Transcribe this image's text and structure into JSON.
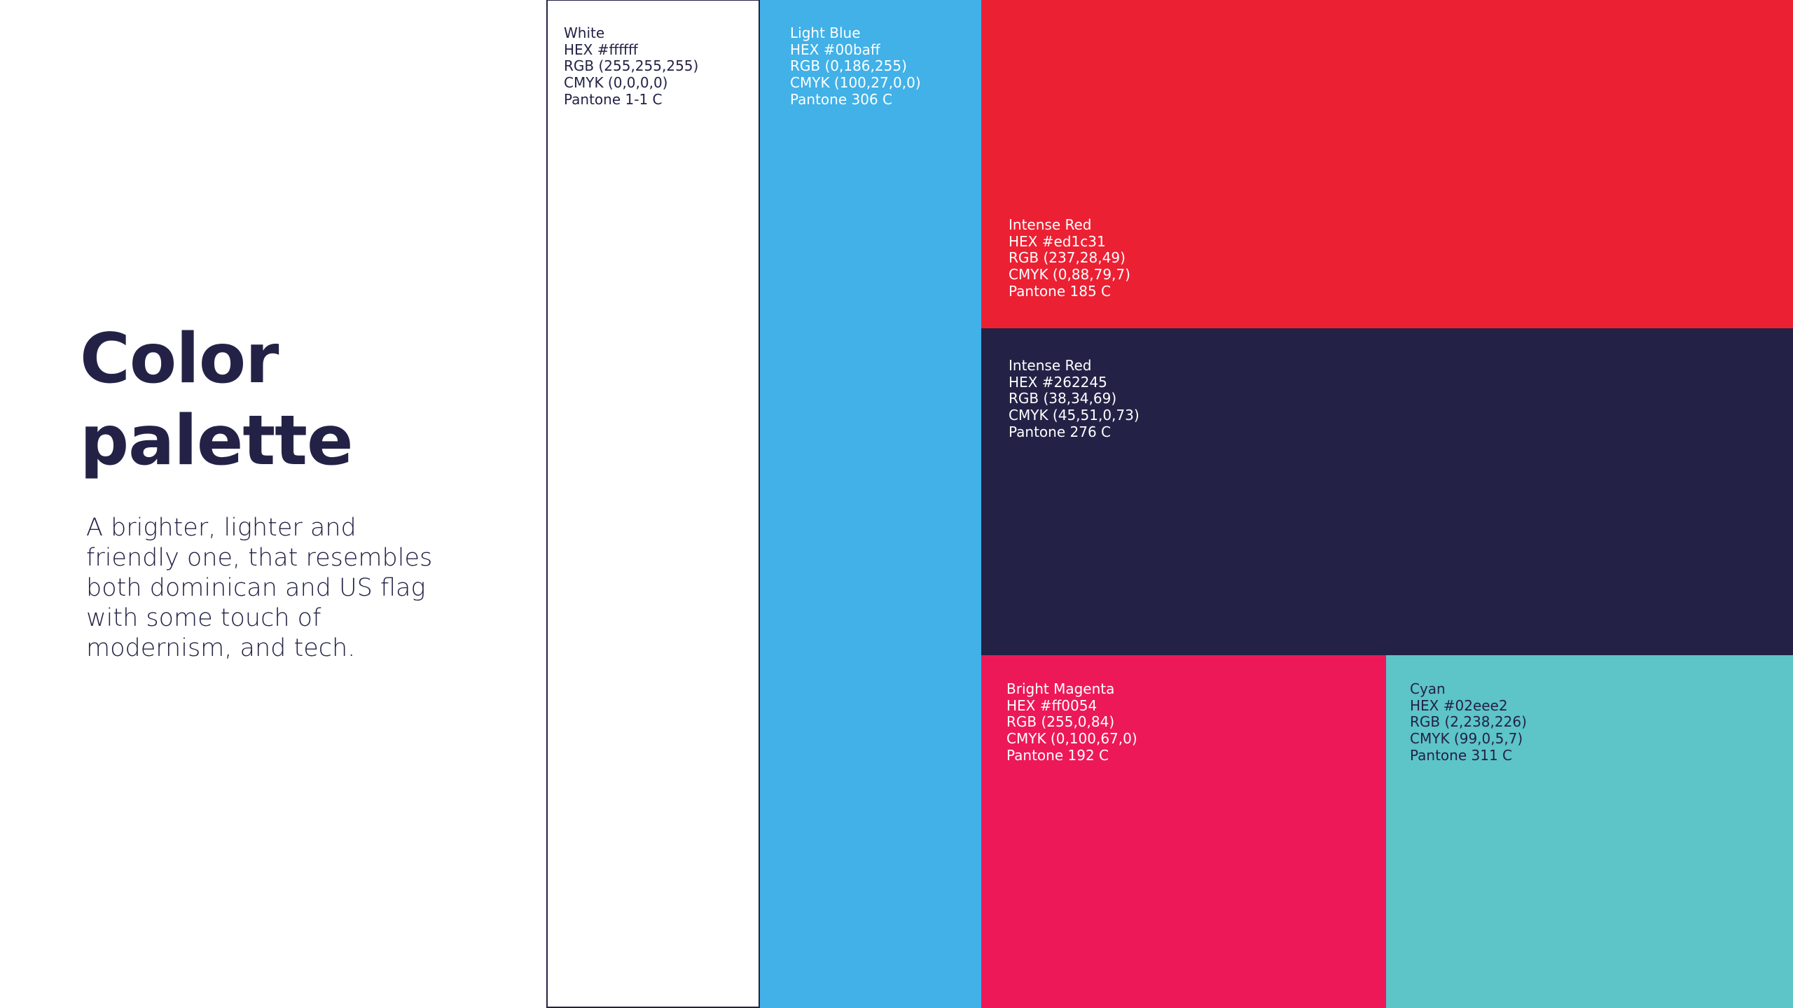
{
  "title": [
    "Color",
    "palette"
  ],
  "description": [
    "A brighter, lighter and",
    "friendly one, that resembles",
    "both dominican and US flag",
    "with some touch of",
    "modernism, and tech."
  ],
  "swatches": [
    {
      "lines": [
        "White",
        "HEX #ffffff",
        "RGB (255,255,255)",
        "CMYK (0,0,0,0)",
        "Pantone 1-1 C"
      ]
    },
    {
      "lines": [
        "Light Blue",
        "HEX #00baff",
        "RGB (0,186,255)",
        "CMYK (100,27,0,0)",
        "Pantone 306 C"
      ]
    },
    {
      "lines": [
        "Intense Red",
        "HEX #ed1c31",
        "RGB (237,28,49)",
        "CMYK (0,88,79,7)",
        "Pantone 185 C"
      ]
    },
    {
      "lines": [
        "Intense Red",
        "HEX #262245",
        "RGB (38,34,69)",
        "CMYK (45,51,0,73)",
        "Pantone 276 C"
      ]
    },
    {
      "lines": [
        "Bright Magenta",
        "HEX #ff0054",
        "RGB (255,0,84)",
        "CMYK (0,100,67,0)",
        "Pantone 192 C"
      ]
    },
    {
      "lines": [
        "Cyan",
        "HEX #02eee2",
        "RGB (2,238,226)",
        "CMYK (99,0,5,7)",
        "Pantone 311 C"
      ]
    }
  ]
}
